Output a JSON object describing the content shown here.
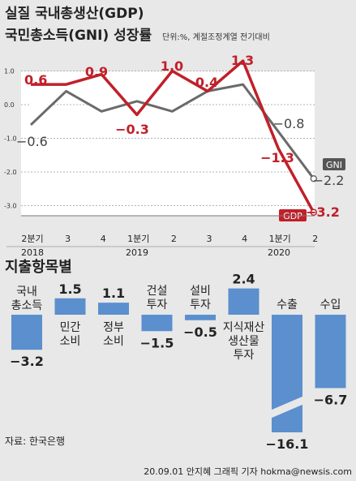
{
  "chart_data": [
    {
      "type": "line",
      "title": "실질 국내총생산(GDP)",
      "title2": "국민총소득(GNI) 성장률",
      "unit_note": "단위:%, 계절조정계열 전기대비",
      "categories": [
        "2분기",
        "3",
        "4",
        "1분기",
        "2",
        "3",
        "4",
        "1분기",
        "2"
      ],
      "year_labels": [
        "2018",
        "2019",
        "2020"
      ],
      "y_ticks": [
        "1.0",
        "0.0",
        "-1.0",
        "-2.0",
        "-3.0"
      ],
      "ylim": [
        -3.6,
        1.6
      ],
      "series": [
        {
          "name": "GDP",
          "color": "#c0202a",
          "values": [
            0.6,
            0.6,
            0.9,
            -0.3,
            1.0,
            0.4,
            1.3,
            -1.3,
            -3.2
          ],
          "labels": [
            "0.6",
            "",
            "0.9",
            "−0.3",
            "1.0",
            "0.4",
            "1.3",
            "−1.3",
            "−3.2"
          ]
        },
        {
          "name": "GNI",
          "color": "#6a6a6a",
          "values": [
            -0.6,
            0.4,
            -0.2,
            0.1,
            -0.2,
            0.4,
            0.6,
            -0.8,
            -2.2
          ],
          "labels": [
            "−0.6",
            "",
            "",
            "",
            "",
            "",
            "",
            "−0.8",
            "−2.2"
          ]
        }
      ]
    },
    {
      "type": "bar",
      "title": "지출항목별",
      "color": "#5b8fce",
      "categories": [
        "국내\n총소득",
        "민간\n소비",
        "정부\n소비",
        "건설\n투자",
        "설비\n투자",
        "지식재산\n생산물\n투자",
        "수출",
        "수입"
      ],
      "values": [
        -3.2,
        1.5,
        1.1,
        -1.5,
        -0.5,
        2.4,
        -16.1,
        -6.7
      ],
      "value_labels": [
        "−3.2",
        "1.5",
        "1.1",
        "−1.5",
        "−0.5",
        "2.4",
        "−16.1",
        "−6.7"
      ]
    }
  ],
  "source": "자료: 한국은행",
  "credit": "20.09.01 안지혜 그래픽 기자 hokma@newsis.com"
}
